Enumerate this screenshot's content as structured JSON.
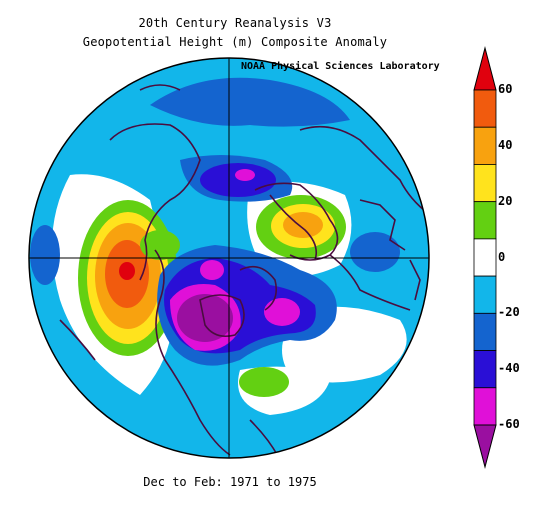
{
  "title": "20th Century Reanalysis V3",
  "subtitle": "Geopotential Height (m) Composite Anomaly",
  "credit": "NOAA Physical Sciences Laboratory",
  "period": "Dec to Feb: 1971 to 1975",
  "colorbar": {
    "labels": [
      "60",
      "40",
      "20",
      "0",
      "-20",
      "-40",
      "-60"
    ],
    "colors": [
      "#9a0fa0",
      "#e010d8",
      "#2a0fd6",
      "#1464cf",
      "#12b6ea",
      "#ffffff",
      "#63d012",
      "#ffe31d",
      "#f8a20f",
      "#f15b0e",
      "#e0010e"
    ],
    "bins": [
      "<-60",
      "-60..-50",
      "-50..-40",
      "-40..-30",
      "-30..-10",
      "-10..10",
      "10..20",
      "20..30",
      "30..40",
      "40..50",
      ">50"
    ]
  },
  "colors": {
    "coast": "#4a0d3f",
    "background": "#ffffff",
    "ocean_fill": "#12b6ea"
  },
  "projection": "north-polar-stereographic"
}
